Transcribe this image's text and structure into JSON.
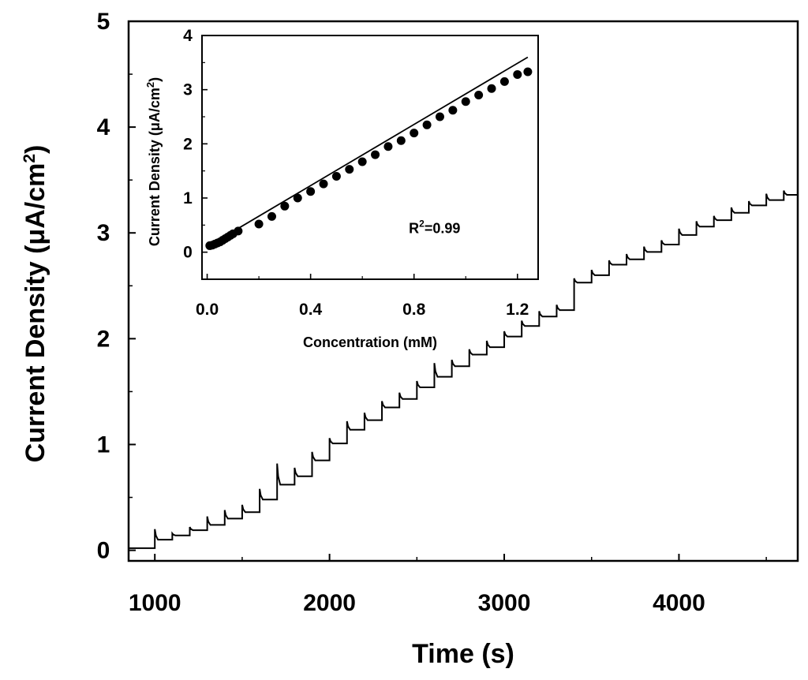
{
  "chart_data": [
    {
      "type": "line",
      "id": "main",
      "xlabel": "Time (s)",
      "ylabel_main": "Current Density (",
      "ylabel_unit": "μA/cm",
      "ylabel_sup": "2",
      "ylabel_close": ")",
      "xlim": [
        850,
        4680
      ],
      "ylim": [
        -0.1,
        5.0
      ],
      "xticks": [
        1000,
        2000,
        3000,
        4000
      ],
      "xtick_labels": [
        "1000",
        "2000",
        "3000",
        "4000"
      ],
      "yticks": [
        0,
        1,
        2,
        3,
        4,
        5
      ],
      "ytick_labels": [
        "0",
        "1",
        "2",
        "3",
        "4",
        "5"
      ],
      "grid": false,
      "series": [
        {
          "baseline": 0.02,
          "baseline_start": 850,
          "steps": [
            {
              "t": 1000,
              "level": 0.1,
              "spike": 0.2
            },
            {
              "t": 1100,
              "level": 0.14,
              "spike": 0.16
            },
            {
              "t": 1200,
              "level": 0.19,
              "spike": 0.22
            },
            {
              "t": 1300,
              "level": 0.24,
              "spike": 0.32
            },
            {
              "t": 1400,
              "level": 0.3,
              "spike": 0.38
            },
            {
              "t": 1500,
              "level": 0.36,
              "spike": 0.43
            },
            {
              "t": 1600,
              "level": 0.48,
              "spike": 0.58
            },
            {
              "t": 1700,
              "level": 0.62,
              "spike": 0.82
            },
            {
              "t": 1800,
              "level": 0.7,
              "spike": 0.78
            },
            {
              "t": 1900,
              "level": 0.85,
              "spike": 0.93
            },
            {
              "t": 2000,
              "level": 1.01,
              "spike": 1.06
            },
            {
              "t": 2100,
              "level": 1.14,
              "spike": 1.22
            },
            {
              "t": 2200,
              "level": 1.23,
              "spike": 1.3
            },
            {
              "t": 2300,
              "level": 1.35,
              "spike": 1.41
            },
            {
              "t": 2400,
              "level": 1.43,
              "spike": 1.49
            },
            {
              "t": 2500,
              "level": 1.54,
              "spike": 1.6
            },
            {
              "t": 2600,
              "level": 1.64,
              "spike": 1.77
            },
            {
              "t": 2700,
              "level": 1.74,
              "spike": 1.8
            },
            {
              "t": 2800,
              "level": 1.85,
              "spike": 1.9
            },
            {
              "t": 2900,
              "level": 1.92,
              "spike": 1.98
            },
            {
              "t": 3000,
              "level": 2.02,
              "spike": 2.07
            },
            {
              "t": 3100,
              "level": 2.12,
              "spike": 2.17
            },
            {
              "t": 3200,
              "level": 2.21,
              "spike": 2.26
            },
            {
              "t": 3300,
              "level": 2.27,
              "spike": 2.32
            },
            {
              "t": 3400,
              "level": 2.53,
              "spike": 2.57
            },
            {
              "t": 3500,
              "level": 2.6,
              "spike": 2.65
            },
            {
              "t": 3600,
              "level": 2.7,
              "spike": 2.74
            },
            {
              "t": 3700,
              "level": 2.75,
              "spike": 2.8
            },
            {
              "t": 3800,
              "level": 2.82,
              "spike": 2.87
            },
            {
              "t": 3900,
              "level": 2.89,
              "spike": 2.93
            },
            {
              "t": 4000,
              "level": 2.98,
              "spike": 3.04
            },
            {
              "t": 4100,
              "level": 3.06,
              "spike": 3.11
            },
            {
              "t": 4200,
              "level": 3.12,
              "spike": 3.16
            },
            {
              "t": 4300,
              "level": 3.19,
              "spike": 3.24
            },
            {
              "t": 4400,
              "level": 3.26,
              "spike": 3.3
            },
            {
              "t": 4500,
              "level": 3.31,
              "spike": 3.37
            },
            {
              "t": 4600,
              "level": 3.36,
              "spike": 3.4
            }
          ],
          "end_t": 4680
        }
      ]
    },
    {
      "type": "scatter",
      "id": "inset",
      "xlabel": "Concentration (mM)",
      "ylabel_main": "Current Density (",
      "ylabel_unit": "μA/cm",
      "ylabel_sup": "2",
      "ylabel_close": ")",
      "xlim": [
        -0.02,
        1.28
      ],
      "ylim": [
        -0.5,
        4.0
      ],
      "xticks": [
        0.0,
        0.4,
        0.8,
        1.2
      ],
      "xtick_labels": [
        "0.0",
        "0.4",
        "0.8",
        "1.2"
      ],
      "yticks": [
        0,
        1,
        2,
        3,
        4
      ],
      "ytick_labels": [
        "0",
        "1",
        "2",
        "3",
        "4"
      ],
      "grid": false,
      "annotation": {
        "text": "R",
        "sup": "2",
        "rest": "=0.99",
        "x": 0.78,
        "y": 0.35
      },
      "fit": {
        "x0": 0.0,
        "y0": 0.1,
        "x1": 1.24,
        "y1": 3.6
      },
      "series": [
        {
          "x": [
            0.01,
            0.02,
            0.03,
            0.04,
            0.05,
            0.06,
            0.07,
            0.08,
            0.09,
            0.1,
            0.12,
            0.2,
            0.25,
            0.3,
            0.35,
            0.4,
            0.45,
            0.5,
            0.55,
            0.6,
            0.65,
            0.7,
            0.75,
            0.8,
            0.85,
            0.9,
            0.95,
            1.0,
            1.05,
            1.1,
            1.15,
            1.2,
            1.24
          ],
          "y": [
            0.12,
            0.13,
            0.15,
            0.17,
            0.19,
            0.22,
            0.25,
            0.28,
            0.31,
            0.34,
            0.39,
            0.52,
            0.66,
            0.85,
            1.0,
            1.12,
            1.26,
            1.4,
            1.53,
            1.67,
            1.8,
            1.95,
            2.06,
            2.2,
            2.35,
            2.5,
            2.62,
            2.78,
            2.9,
            3.02,
            3.15,
            3.28,
            3.33
          ]
        }
      ]
    }
  ]
}
